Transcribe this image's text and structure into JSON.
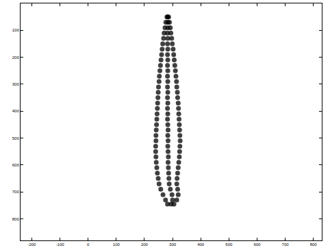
{
  "chart_data": {
    "type": "scatter",
    "color": "#000000",
    "marker": "circle",
    "grid": false,
    "xlim": [
      -240,
      830
    ],
    "xticks": [
      -200,
      -100,
      0,
      100,
      200,
      300,
      400,
      500,
      600,
      700,
      800
    ],
    "ylim": [
      880,
      0
    ],
    "yticks": [
      100,
      200,
      300,
      400,
      500,
      600,
      700,
      800
    ],
    "x": [
      280,
      283,
      286,
      276,
      283,
      289,
      273,
      283,
      292,
      270,
      282,
      294,
      268,
      283,
      297,
      265,
      282,
      299,
      263,
      283,
      302,
      261,
      282,
      304,
      259,
      283,
      306,
      257,
      282,
      308,
      255,
      283,
      310,
      253,
      282,
      312,
      252,
      283,
      314,
      250,
      282,
      315,
      249,
      283,
      317,
      248,
      282,
      318,
      247,
      283,
      320,
      246,
      282,
      321,
      245,
      283,
      322,
      244,
      282,
      323,
      243,
      283,
      324,
      242,
      284,
      325,
      241,
      283,
      326,
      241,
      284,
      327,
      240,
      283,
      326,
      240,
      284,
      325,
      241,
      285,
      324,
      242,
      284,
      322,
      244,
      285,
      320,
      246,
      286,
      318,
      249,
      287,
      316,
      252,
      288,
      315,
      258,
      292,
      318,
      266,
      298,
      320,
      275,
      300,
      315,
      282,
      295,
      305
    ],
    "values": [
      50,
      50,
      50,
      70,
      70,
      70,
      90,
      90,
      90,
      110,
      110,
      110,
      130,
      130,
      130,
      150,
      150,
      150,
      170,
      170,
      170,
      190,
      190,
      190,
      210,
      210,
      210,
      230,
      230,
      230,
      250,
      250,
      250,
      270,
      270,
      270,
      290,
      290,
      290,
      310,
      310,
      310,
      330,
      330,
      330,
      350,
      350,
      350,
      370,
      370,
      370,
      390,
      390,
      390,
      410,
      410,
      410,
      430,
      430,
      430,
      450,
      450,
      450,
      470,
      470,
      470,
      490,
      490,
      490,
      510,
      510,
      510,
      530,
      530,
      530,
      550,
      550,
      550,
      570,
      570,
      570,
      590,
      590,
      590,
      610,
      610,
      610,
      630,
      630,
      630,
      650,
      650,
      650,
      670,
      670,
      670,
      690,
      690,
      690,
      710,
      710,
      710,
      730,
      730,
      730,
      745,
      745,
      745
    ]
  }
}
